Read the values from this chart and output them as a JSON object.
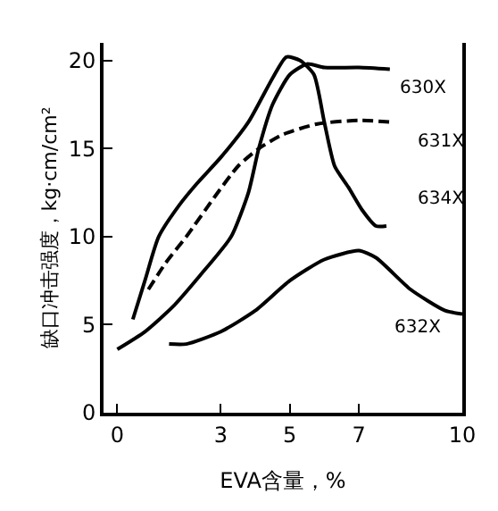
{
  "chart_data": {
    "type": "line",
    "xlabel": "EVA含量，%",
    "ylabel": "缺口冲击强度，kg·cm/cm²",
    "xlim": [
      -0.4,
      10
    ],
    "ylim": [
      0,
      21
    ],
    "xticks": [
      0,
      3,
      5,
      7,
      10
    ],
    "yticks": [
      0,
      5,
      10,
      15,
      20
    ],
    "legend": false,
    "marker": "none",
    "series": [
      {
        "name": "630X",
        "color": "#000000",
        "line_style": "solid",
        "x": [
          0,
          0.8,
          1.6,
          2.4,
          3.3,
          3.8,
          4.1,
          4.5,
          5.0,
          5.5,
          6.0,
          7.0,
          7.9
        ],
        "values": [
          3.6,
          4.6,
          6.0,
          7.8,
          10.0,
          12.5,
          15.0,
          17.5,
          19.2,
          19.8,
          19.6,
          19.6,
          19.5
        ]
      },
      {
        "name": "631X",
        "color": "#000000",
        "line_style": "dashed",
        "x": [
          0.9,
          1.4,
          2.0,
          2.8,
          3.5,
          4.1,
          4.8,
          5.8,
          7.0,
          8.0
        ],
        "values": [
          7.0,
          8.5,
          10.0,
          12.2,
          14.0,
          15.0,
          15.8,
          16.4,
          16.6,
          16.5
        ]
      },
      {
        "name": "634X",
        "color": "#000000",
        "line_style": "solid",
        "x": [
          0.45,
          0.8,
          1.2,
          1.8,
          2.3,
          3.0,
          3.8,
          4.5,
          4.9,
          5.3,
          5.7,
          6.0,
          6.3,
          6.7,
          7.1,
          7.5,
          7.8
        ],
        "values": [
          5.3,
          7.5,
          10.0,
          11.8,
          13.0,
          14.5,
          16.5,
          19.0,
          20.2,
          20.0,
          19.2,
          16.5,
          14.0,
          12.8,
          11.5,
          10.6,
          10.6
        ]
      },
      {
        "name": "632X",
        "color": "#000000",
        "line_style": "solid",
        "x": [
          1.5,
          2.0,
          3.0,
          4.0,
          5.0,
          6.0,
          7.0,
          7.5,
          8.5,
          9.5,
          10.0
        ],
        "values": [
          3.9,
          3.9,
          4.6,
          5.8,
          7.5,
          8.7,
          9.2,
          8.8,
          7.0,
          5.8,
          5.6
        ]
      }
    ]
  }
}
